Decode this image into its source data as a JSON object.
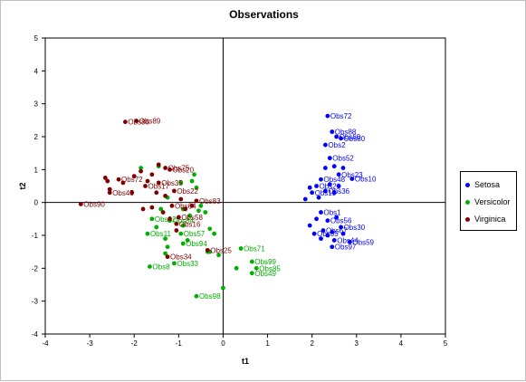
{
  "chart_data": {
    "type": "scatter",
    "title": "Observations",
    "xlabel": "t1",
    "ylabel": "t2",
    "xlim": [
      -4,
      5
    ],
    "ylim": [
      -4,
      5
    ],
    "xticks": [
      -4,
      -3,
      -2,
      -1,
      0,
      1,
      2,
      3,
      4,
      5
    ],
    "yticks": [
      -4,
      -3,
      -2,
      -1,
      0,
      1,
      2,
      3,
      4,
      5
    ],
    "grid": false,
    "legend_position": "right",
    "series": [
      {
        "name": "Setosa",
        "color": "#0000ff",
        "points": [
          {
            "x": 2.35,
            "y": 2.63,
            "label": "Obs72"
          },
          {
            "x": 2.45,
            "y": 2.15,
            "label": "Obs88"
          },
          {
            "x": 2.55,
            "y": 2.0,
            "label": "Obs60"
          },
          {
            "x": 2.65,
            "y": 1.95,
            "label": "Obs80"
          },
          {
            "x": 2.3,
            "y": 1.75,
            "label": "Obs2"
          },
          {
            "x": 2.4,
            "y": 1.35,
            "label": "Obs52"
          },
          {
            "x": 2.6,
            "y": 0.85,
            "label": "Obs23"
          },
          {
            "x": 2.9,
            "y": 0.72,
            "label": "Obs10"
          },
          {
            "x": 2.2,
            "y": 0.7,
            "label": "Obs48"
          },
          {
            "x": 2.1,
            "y": 0.5,
            "label": "Obs21"
          },
          {
            "x": 2.3,
            "y": 0.35,
            "label": "Obs36"
          },
          {
            "x": 2.0,
            "y": 0.3,
            "label": "Obs19"
          },
          {
            "x": 2.2,
            "y": -0.3,
            "label": "Obs1"
          },
          {
            "x": 2.35,
            "y": -0.55,
            "label": "Obs56"
          },
          {
            "x": 2.65,
            "y": -0.75,
            "label": "Obs30"
          },
          {
            "x": 2.25,
            "y": -0.85,
            "label": "Obs67"
          },
          {
            "x": 2.05,
            "y": -0.95,
            "label": "Obs35"
          },
          {
            "x": 2.5,
            "y": -1.15,
            "label": "Obs44"
          },
          {
            "x": 2.85,
            "y": -1.2,
            "label": "Obs59"
          },
          {
            "x": 2.45,
            "y": -1.35,
            "label": "Obs97"
          },
          {
            "x": 2.3,
            "y": 1.05
          },
          {
            "x": 2.5,
            "y": 1.1
          },
          {
            "x": 2.7,
            "y": 1.05
          },
          {
            "x": 2.6,
            "y": 0.5
          },
          {
            "x": 2.4,
            "y": 0.55
          },
          {
            "x": 2.15,
            "y": 0.15
          },
          {
            "x": 1.95,
            "y": 0.45
          },
          {
            "x": 1.85,
            "y": 0.1
          },
          {
            "x": 2.5,
            "y": 0.3
          },
          {
            "x": 2.55,
            "y": -0.45
          },
          {
            "x": 2.1,
            "y": -0.5
          },
          {
            "x": 2.45,
            "y": -0.9
          },
          {
            "x": 2.2,
            "y": -1.1
          },
          {
            "x": 2.7,
            "y": -0.95
          },
          {
            "x": 1.95,
            "y": -0.7
          },
          {
            "x": 2.35,
            "y": -1.0
          }
        ]
      },
      {
        "name": "Versicolor",
        "color": "#00b000",
        "points": [
          {
            "x": 0.4,
            "y": -1.4,
            "label": "Obs71"
          },
          {
            "x": 0.65,
            "y": -1.8,
            "label": "Obs99"
          },
          {
            "x": 0.75,
            "y": -2.0,
            "label": "Obs85"
          },
          {
            "x": 0.65,
            "y": -2.15,
            "label": "Obs49"
          },
          {
            "x": -1.65,
            "y": -1.95,
            "label": "Obs8"
          },
          {
            "x": -0.6,
            "y": -2.85,
            "label": "Obs98"
          },
          {
            "x": -1.7,
            "y": -0.95,
            "label": "Obs11"
          },
          {
            "x": -0.9,
            "y": -1.25,
            "label": "Obs94"
          },
          {
            "x": -1.2,
            "y": -0.55,
            "label": "Obs84"
          },
          {
            "x": -0.95,
            "y": -0.95,
            "label": "Obs57"
          },
          {
            "x": -1.1,
            "y": -1.85,
            "label": "Obs33"
          },
          {
            "x": -1.6,
            "y": -0.5,
            "label": "Obs82"
          },
          {
            "x": 0.3,
            "y": -2.0
          },
          {
            "x": 0.0,
            "y": -2.6
          },
          {
            "x": -0.3,
            "y": -1.5
          },
          {
            "x": -0.1,
            "y": -1.6
          },
          {
            "x": -0.2,
            "y": -0.95
          },
          {
            "x": -0.3,
            "y": -0.8
          },
          {
            "x": -0.4,
            "y": -0.3
          },
          {
            "x": -0.5,
            "y": -0.1
          },
          {
            "x": -0.6,
            "y": 0.45
          },
          {
            "x": -0.95,
            "y": 0.6
          },
          {
            "x": -1.25,
            "y": 0.15
          },
          {
            "x": -1.4,
            "y": -0.2
          },
          {
            "x": -1.5,
            "y": -0.75
          },
          {
            "x": -1.3,
            "y": -1.1
          },
          {
            "x": -1.25,
            "y": -1.35
          },
          {
            "x": -1.3,
            "y": -1.55
          },
          {
            "x": -0.9,
            "y": -0.7
          },
          {
            "x": -0.75,
            "y": -0.4
          },
          {
            "x": -0.9,
            "y": -0.2
          },
          {
            "x": -1.45,
            "y": 1.1
          },
          {
            "x": -1.85,
            "y": 1.05
          },
          {
            "x": -0.65,
            "y": 0.85
          },
          {
            "x": -0.35,
            "y": -1.5
          },
          {
            "x": -0.8,
            "y": -1.15
          },
          {
            "x": -0.55,
            "y": -0.25
          },
          {
            "x": -0.7,
            "y": 0.65
          }
        ]
      },
      {
        "name": "Virginica",
        "color": "#800000",
        "points": [
          {
            "x": -1.95,
            "y": 2.48,
            "label": "Obs89"
          },
          {
            "x": -2.2,
            "y": 2.45,
            "label": "Obs86"
          },
          {
            "x": -3.2,
            "y": -0.05,
            "label": "Obs90"
          },
          {
            "x": -2.55,
            "y": 0.3,
            "label": "Obs45"
          },
          {
            "x": -2.35,
            "y": 0.7,
            "label": "Obs72"
          },
          {
            "x": -1.3,
            "y": 1.05,
            "label": "Obs75"
          },
          {
            "x": -1.2,
            "y": 1.0,
            "label": "Obs20"
          },
          {
            "x": -1.45,
            "y": 0.6,
            "label": "Obs35"
          },
          {
            "x": -1.75,
            "y": 0.5,
            "label": "Obs17"
          },
          {
            "x": -1.1,
            "y": 0.35,
            "label": "Obs22"
          },
          {
            "x": -0.6,
            "y": 0.05,
            "label": "Obs83"
          },
          {
            "x": -1.15,
            "y": -0.1,
            "label": "Obs64"
          },
          {
            "x": -1.0,
            "y": -0.45,
            "label": "Obs58"
          },
          {
            "x": -1.05,
            "y": -0.65,
            "label": "Obs16"
          },
          {
            "x": -0.35,
            "y": -1.45,
            "label": "Obs25"
          },
          {
            "x": -1.25,
            "y": -1.65,
            "label": "Obs34"
          },
          {
            "x": -1.85,
            "y": 0.95
          },
          {
            "x": -2.0,
            "y": 0.8
          },
          {
            "x": -2.25,
            "y": 0.6
          },
          {
            "x": -2.65,
            "y": 0.75
          },
          {
            "x": -2.6,
            "y": 0.65
          },
          {
            "x": -1.6,
            "y": 0.85
          },
          {
            "x": -1.5,
            "y": 0.3
          },
          {
            "x": -1.3,
            "y": 0.2
          },
          {
            "x": -0.95,
            "y": 0.1
          },
          {
            "x": -1.35,
            "y": -0.3
          },
          {
            "x": -1.6,
            "y": -0.15
          },
          {
            "x": -1.8,
            "y": -0.2
          },
          {
            "x": -0.85,
            "y": -0.2
          },
          {
            "x": -1.2,
            "y": -0.5
          },
          {
            "x": -0.7,
            "y": -0.1
          },
          {
            "x": -1.05,
            "y": -0.85
          },
          {
            "x": -1.45,
            "y": 1.15
          },
          {
            "x": -1.7,
            "y": 0.65
          },
          {
            "x": -2.05,
            "y": 0.3
          },
          {
            "x": -2.55,
            "y": 0.4
          }
        ]
      }
    ]
  }
}
